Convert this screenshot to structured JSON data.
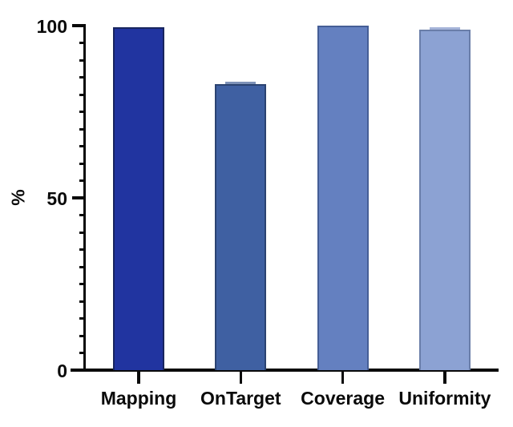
{
  "figure": {
    "background": "#ffffff",
    "axis_color": "#0a0a0a",
    "text_color": "#0a0a0a"
  },
  "chart_data": {
    "type": "bar",
    "title": "",
    "categories": [
      "Mapping",
      "OnTarget",
      "Coverage",
      "Uniformity"
    ],
    "values": [
      99.6,
      83.0,
      100.0,
      98.9
    ],
    "bar_fill_colors": [
      "#2134A0",
      "#3F60A2",
      "#6480C0",
      "#8CA2D3"
    ],
    "bar_border_colors": [
      "#18255F",
      "#2B4371",
      "#455E96",
      "#6A7EA9"
    ],
    "error_caps": [
      {
        "index": 1,
        "color": "#7E92B8"
      },
      {
        "index": 3,
        "color": "#A5B4D8"
      }
    ],
    "xlabel": "",
    "ylabel": "%",
    "ylim": [
      0,
      100
    ],
    "y_major_ticks": [
      0,
      50,
      100
    ],
    "y_minor_tick_step": 5,
    "grid": false,
    "legend": false
  }
}
